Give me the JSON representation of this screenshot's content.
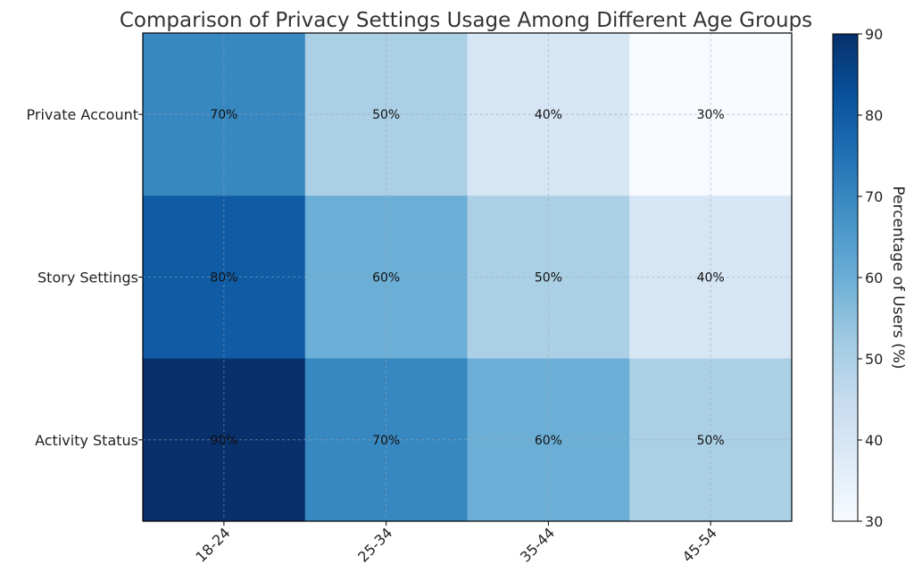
{
  "chart_data": {
    "type": "heatmap",
    "title": "Comparison of Privacy Settings Usage Among Different Age Groups",
    "x_categories": [
      "18-24",
      "25-34",
      "35-44",
      "45-54"
    ],
    "y_categories": [
      "Private Account",
      "Story Settings",
      "Activity Status"
    ],
    "values": [
      [
        70,
        50,
        40,
        30
      ],
      [
        80,
        60,
        50,
        40
      ],
      [
        90,
        70,
        60,
        50
      ]
    ],
    "cell_labels": [
      [
        "70%",
        "50%",
        "40%",
        "30%"
      ],
      [
        "80%",
        "60%",
        "50%",
        "40%"
      ],
      [
        "90%",
        "70%",
        "60%",
        "50%"
      ]
    ],
    "colormap": "Blues",
    "colorbar": {
      "label": "Percentage of Users (%)",
      "range": [
        30,
        90
      ],
      "ticks": [
        30,
        40,
        50,
        60,
        70,
        80,
        90
      ]
    },
    "grid": true
  }
}
